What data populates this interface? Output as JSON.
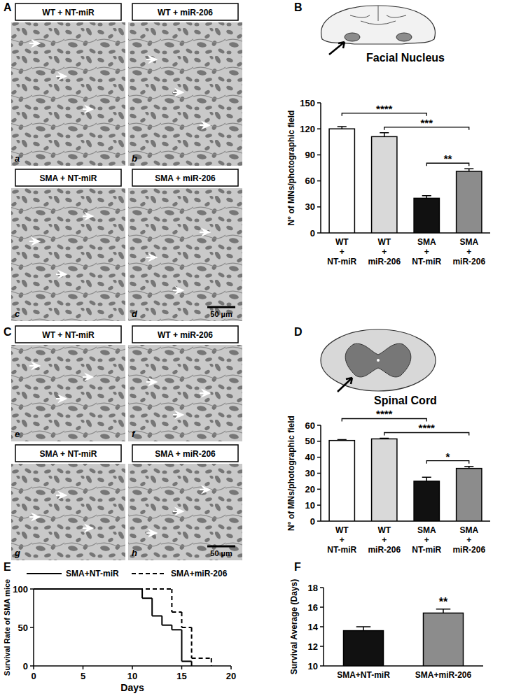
{
  "micrographs": [
    {
      "panel": "A",
      "scale_bar": "50 µm",
      "images": [
        {
          "title": "WT + NT-miR",
          "label": "a"
        },
        {
          "title": "WT + miR-206",
          "label": "b"
        },
        {
          "title": "SMA + NT-miR",
          "label": "c"
        },
        {
          "title": "SMA + miR-206",
          "label": "d"
        }
      ]
    },
    {
      "panel": "C",
      "scale_bar": "50 µm",
      "images": [
        {
          "title": "WT + NT-miR",
          "label": "e"
        },
        {
          "title": "WT + miR-206",
          "label": "f"
        },
        {
          "title": "SMA + NT-miR",
          "label": "g"
        },
        {
          "title": "SMA + miR-206",
          "label": "h"
        }
      ]
    }
  ],
  "chart_data": [
    {
      "panel": "B",
      "type": "bar",
      "title": "Facial Nucleus",
      "ylabel": "N° of MNs/photographic field",
      "categories": [
        "WT + NT-miR",
        "WT + miR-206",
        "SMA + NT-miR",
        "SMA + miR-206"
      ],
      "values": [
        120,
        111,
        40,
        71
      ],
      "errors": [
        2.5,
        4.5,
        3,
        3
      ],
      "colors": [
        "#ffffff",
        "#d9d9d9",
        "#111111",
        "#8c8c8c"
      ],
      "ylim": [
        0,
        150
      ],
      "yticks": [
        0,
        30,
        60,
        90,
        120,
        150
      ],
      "annotations": [
        {
          "label": "**",
          "between": [
            "SMA + NT-miR",
            "SMA + miR-206"
          ]
        },
        {
          "label": "***",
          "between": [
            "WT + miR-206",
            "SMA + miR-206"
          ]
        },
        {
          "label": "****",
          "between": [
            "WT + NT-miR",
            "SMA + NT-miR"
          ]
        }
      ]
    },
    {
      "panel": "D",
      "type": "bar",
      "title": "Spinal Cord",
      "ylabel": "N° of MNs/photographic field",
      "categories": [
        "WT + NT-miR",
        "WT + miR-206",
        "SMA + NT-miR",
        "SMA + miR-206"
      ],
      "values": [
        50.5,
        51.5,
        25,
        33
      ],
      "errors": [
        0.5,
        0.4,
        2.5,
        1.3
      ],
      "colors": [
        "#ffffff",
        "#d9d9d9",
        "#111111",
        "#8c8c8c"
      ],
      "ylim": [
        0,
        60
      ],
      "yticks": [
        0,
        10,
        20,
        30,
        40,
        50,
        60
      ],
      "annotations": [
        {
          "label": "*",
          "between": [
            "SMA + NT-miR",
            "SMA + miR-206"
          ]
        },
        {
          "label": "****",
          "between": [
            "WT + miR-206",
            "SMA + miR-206"
          ]
        },
        {
          "label": "****",
          "between": [
            "WT + NT-miR",
            "SMA + NT-miR"
          ]
        }
      ]
    },
    {
      "panel": "E",
      "type": "line",
      "xlabel": "Days",
      "ylabel": "Survival Rate of SMA mice",
      "xlim": [
        0,
        20
      ],
      "xticks": [
        0,
        5,
        10,
        15,
        20
      ],
      "ylim": [
        0,
        100
      ],
      "yticks": [
        0,
        50,
        100
      ],
      "legend": "top",
      "series": [
        {
          "name": "SMA+NT-miR",
          "color": "#000000",
          "line_style": "solid",
          "x": [
            0,
            11,
            12,
            13,
            14,
            15,
            16
          ],
          "values": [
            100,
            88,
            65,
            53,
            47,
            6,
            0
          ]
        },
        {
          "name": "SMA+miR-206",
          "color": "#000000",
          "line_style": "dashed",
          "x": [
            0,
            14,
            15,
            16,
            18
          ],
          "values": [
            100,
            70,
            50,
            10,
            0
          ]
        }
      ]
    },
    {
      "panel": "F",
      "type": "bar",
      "ylabel": "Survival Average (Days)",
      "categories": [
        "SMA+NT-miR",
        "SMA+miR-206"
      ],
      "values": [
        13.6,
        15.4
      ],
      "errors": [
        0.4,
        0.4
      ],
      "colors": [
        "#111111",
        "#8c8c8c"
      ],
      "ylim": [
        10,
        18
      ],
      "yticks": [
        10,
        12,
        14,
        16,
        18
      ],
      "annotations": [
        {
          "label": "**",
          "between": [
            "SMA+miR-206"
          ]
        }
      ]
    }
  ]
}
